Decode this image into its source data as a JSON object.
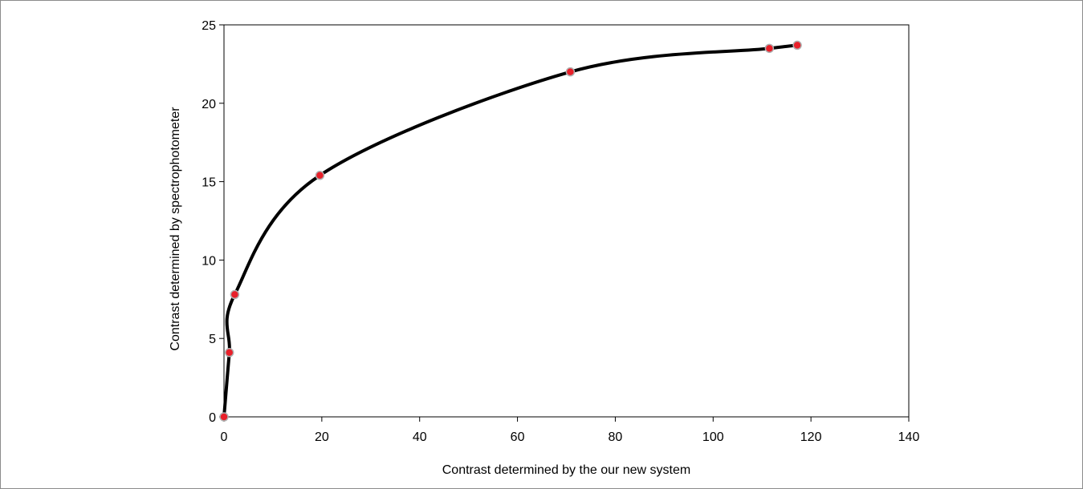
{
  "chart_data": {
    "type": "scatter",
    "title": "",
    "xlabel": "Contrast determined by the our new system",
    "ylabel": "Contrast determined by spectrophotometer",
    "xlim": [
      0,
      140
    ],
    "ylim": [
      0,
      25
    ],
    "xticks": [
      "0",
      "20",
      "40",
      "60",
      "80",
      "100",
      "120",
      "140"
    ],
    "yticks": [
      "0",
      "5",
      "10",
      "15",
      "20",
      "25"
    ],
    "grid": false,
    "legend": "none",
    "smooth_line": true,
    "line_color": "#000000",
    "marker_color": "#e8202a",
    "marker_edge_color": "#b0b0b0",
    "series": [
      {
        "x": [
          0,
          1.1,
          2.2,
          19.6,
          70.8,
          111.5,
          117.2
        ],
        "y": [
          0,
          4.1,
          7.8,
          15.4,
          22.0,
          23.5,
          23.7
        ]
      }
    ]
  }
}
